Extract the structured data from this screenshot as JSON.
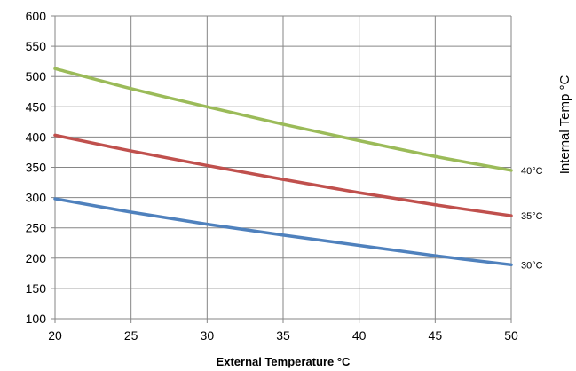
{
  "chart_data": {
    "type": "line",
    "xlabel": "External Temperature °C",
    "ylabel_right": "Internal Temp °C",
    "xlim": [
      20,
      50
    ],
    "ylim": [
      100,
      600
    ],
    "x_ticks": [
      20,
      25,
      30,
      35,
      40,
      45,
      50
    ],
    "y_ticks": [
      100,
      150,
      200,
      250,
      300,
      350,
      400,
      450,
      500,
      550,
      600
    ],
    "grid": true,
    "x": [
      20,
      25,
      30,
      35,
      40,
      45,
      50
    ],
    "series": [
      {
        "name": "40°C",
        "color": "#9bbb59",
        "values": [
          513,
          480,
          450,
          421,
          394,
          368,
          345
        ]
      },
      {
        "name": "35°C",
        "color": "#c0504d",
        "values": [
          403,
          377,
          353,
          330,
          308,
          288,
          270
        ]
      },
      {
        "name": "30°C",
        "color": "#4f81bd",
        "values": [
          298,
          276,
          256,
          238,
          221,
          204,
          189
        ]
      }
    ]
  }
}
